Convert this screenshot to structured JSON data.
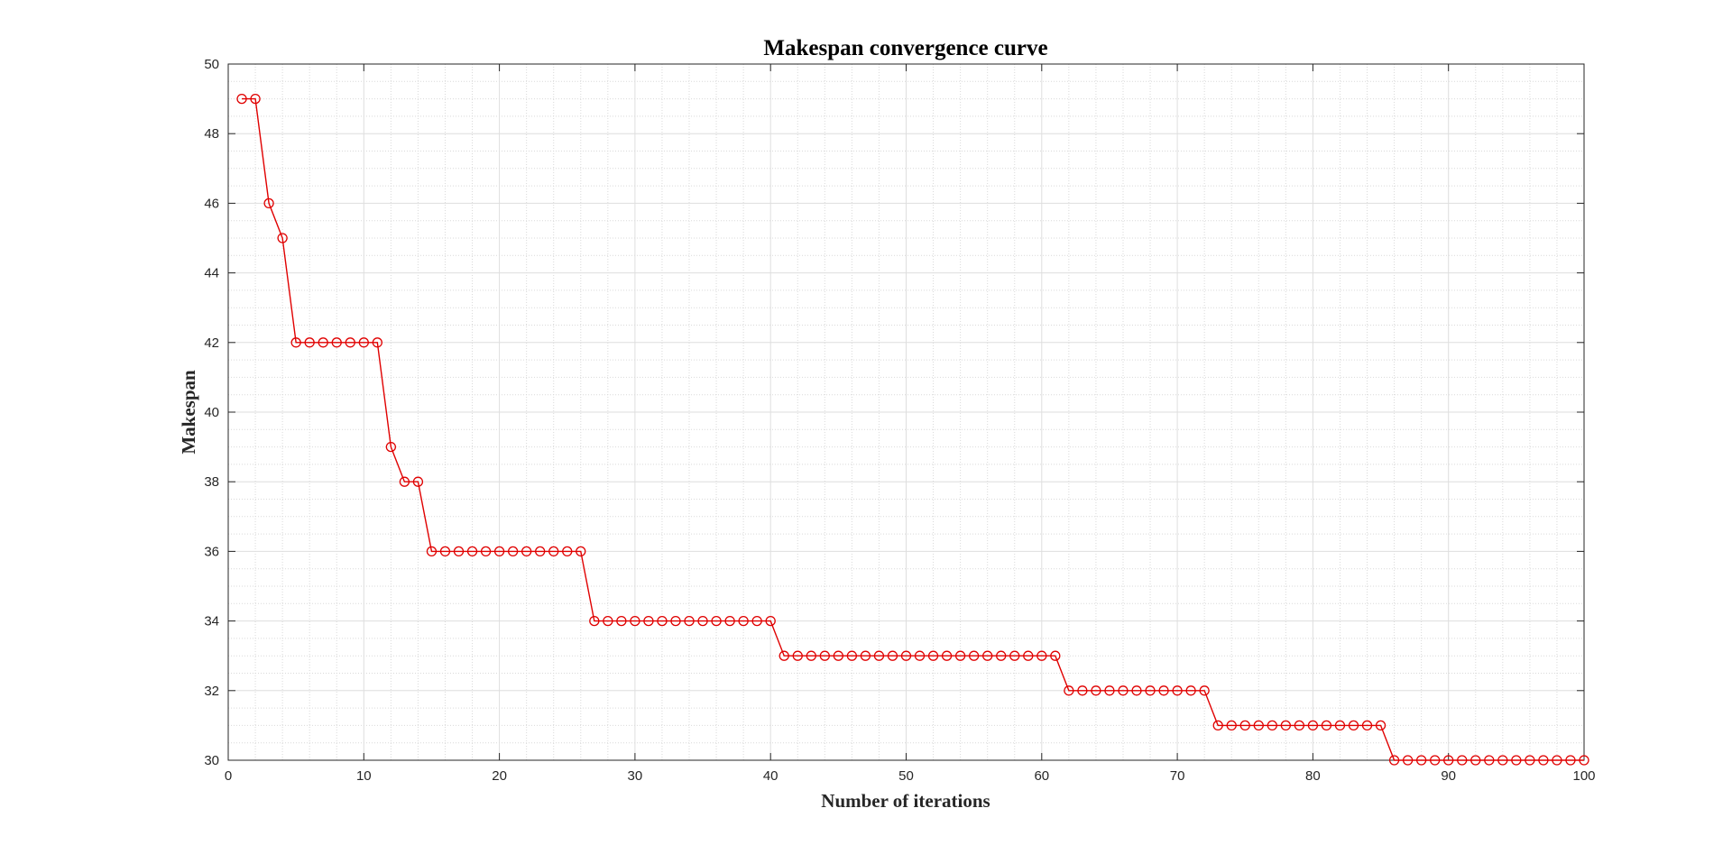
{
  "chart_data": {
    "type": "line",
    "title": "Makespan convergence curve",
    "xlabel": "Number of iterations",
    "ylabel": "Makespan",
    "xlim": [
      0,
      100
    ],
    "ylim": [
      30,
      50
    ],
    "xticks": [
      0,
      10,
      20,
      30,
      40,
      50,
      60,
      70,
      80,
      90,
      100
    ],
    "yticks": [
      30,
      32,
      34,
      36,
      38,
      40,
      42,
      44,
      46,
      48,
      50
    ],
    "grid": true,
    "minor_grid": true,
    "marker": "circle",
    "line_color": "#e00000",
    "series": [
      {
        "x": [
          1,
          2,
          3,
          4,
          5,
          6,
          7,
          8,
          9,
          10,
          11,
          12,
          13,
          14,
          15,
          16,
          17,
          18,
          19,
          20,
          21,
          22,
          23,
          24,
          25,
          26,
          27,
          28,
          29,
          30,
          31,
          32,
          33,
          34,
          35,
          36,
          37,
          38,
          39,
          40,
          41,
          42,
          43,
          44,
          45,
          46,
          47,
          48,
          49,
          50,
          51,
          52,
          53,
          54,
          55,
          56,
          57,
          58,
          59,
          60,
          61,
          62,
          63,
          64,
          65,
          66,
          67,
          68,
          69,
          70,
          71,
          72,
          73,
          74,
          75,
          76,
          77,
          78,
          79,
          80,
          81,
          82,
          83,
          84,
          85,
          86,
          87,
          88,
          89,
          90,
          91,
          92,
          93,
          94,
          95,
          96,
          97,
          98,
          99,
          100
        ],
        "values": [
          49,
          49,
          46,
          45,
          42,
          42,
          42,
          42,
          42,
          42,
          42,
          39,
          38,
          38,
          36,
          36,
          36,
          36,
          36,
          36,
          36,
          36,
          36,
          36,
          36,
          36,
          34,
          34,
          34,
          34,
          34,
          34,
          34,
          34,
          34,
          34,
          34,
          34,
          34,
          34,
          33,
          33,
          33,
          33,
          33,
          33,
          33,
          33,
          33,
          33,
          33,
          33,
          33,
          33,
          33,
          33,
          33,
          33,
          33,
          33,
          33,
          32,
          32,
          32,
          32,
          32,
          32,
          32,
          32,
          32,
          32,
          32,
          31,
          31,
          31,
          31,
          31,
          31,
          31,
          31,
          31,
          31,
          31,
          31,
          31,
          30,
          30,
          30,
          30,
          30,
          30,
          30,
          30,
          30,
          30,
          30,
          30,
          30,
          30,
          30
        ]
      }
    ]
  }
}
